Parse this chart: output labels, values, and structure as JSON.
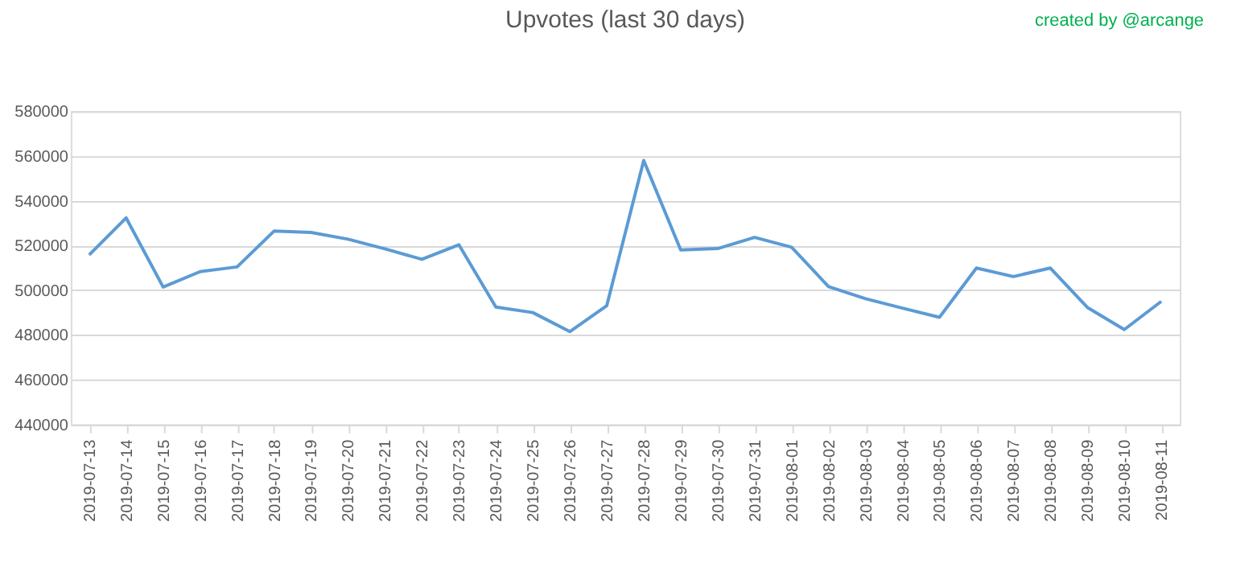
{
  "chart_data": {
    "type": "line",
    "title": "Upvotes (last 30 days)",
    "annotations": [
      "created by @arcange"
    ],
    "categories": [
      "2019-07-13",
      "2019-07-14",
      "2019-07-15",
      "2019-07-16",
      "2019-07-17",
      "2019-07-18",
      "2019-07-19",
      "2019-07-20",
      "2019-07-21",
      "2019-07-22",
      "2019-07-23",
      "2019-07-24",
      "2019-07-25",
      "2019-07-26",
      "2019-07-27",
      "2019-07-28",
      "2019-07-29",
      "2019-07-30",
      "2019-07-31",
      "2019-08-01",
      "2019-08-02",
      "2019-08-03",
      "2019-08-04",
      "2019-08-05",
      "2019-08-06",
      "2019-08-07",
      "2019-08-08",
      "2019-08-09",
      "2019-08-10",
      "2019-08-11"
    ],
    "series": [
      {
        "color": "#5b9bd5",
        "values": [
          515800,
          532300,
          501400,
          508300,
          510400,
          526400,
          525800,
          522800,
          518500,
          513800,
          520300,
          492500,
          490000,
          481500,
          493100,
          558000,
          518000,
          518600,
          523600,
          519200,
          501600,
          496200,
          492000,
          487900,
          509900,
          506100,
          509900,
          492300,
          482400,
          495000
        ]
      }
    ],
    "ylim": [
      440000,
      580000
    ],
    "yticks": [
      440000,
      460000,
      480000,
      500000,
      520000,
      540000,
      560000,
      580000
    ],
    "grid": "y",
    "marker": "none",
    "line_style": "solid"
  }
}
